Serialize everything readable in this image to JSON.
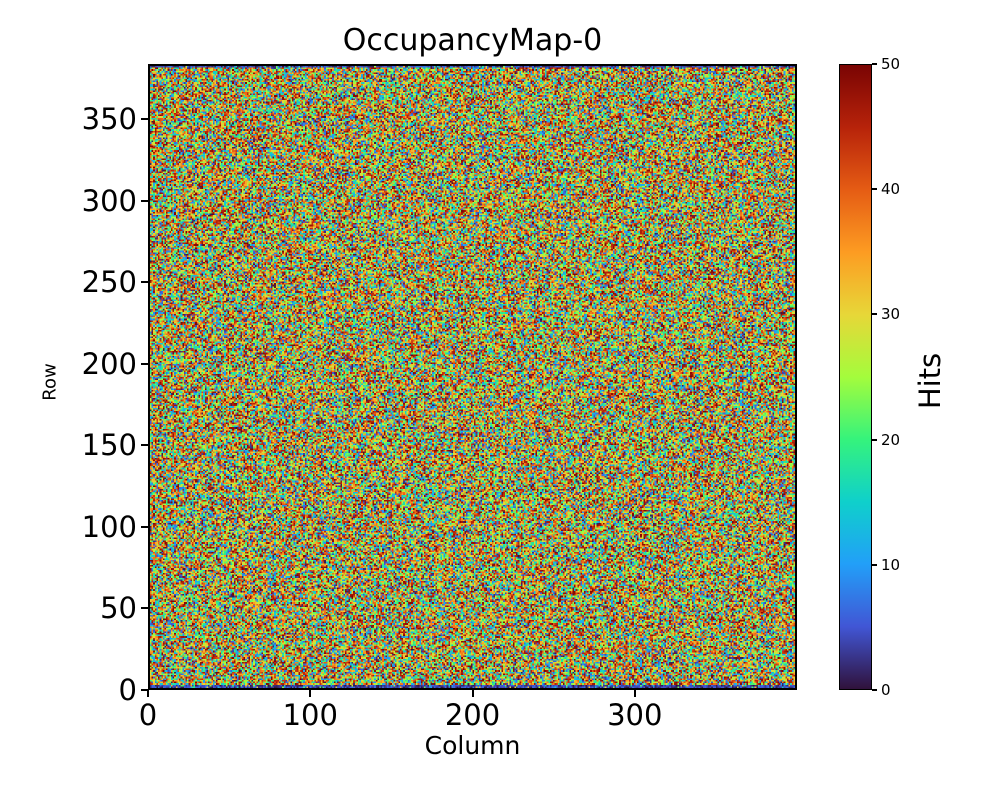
{
  "figure": {
    "background_color": "#ffffff",
    "text_color": "#000000",
    "spine_color": "#000000"
  },
  "chart_data": {
    "type": "heatmap",
    "title": "OccupancyMap-0",
    "xlabel": "Column",
    "ylabel": "Row",
    "colorbar_label": "Hits",
    "x_range": [
      0,
      400
    ],
    "y_range": [
      0,
      384
    ],
    "value_range": [
      0,
      50
    ],
    "x_ticks": [
      0,
      100,
      200,
      300
    ],
    "y_ticks": [
      0,
      50,
      100,
      150,
      200,
      250,
      300,
      350
    ],
    "colorbar_ticks": [
      0,
      10,
      20,
      30,
      40,
      50
    ],
    "grid": false,
    "legend": false,
    "colormap": "turbo",
    "colormap_stops": [
      "#30123b",
      "#4156d5",
      "#229ff8",
      "#0fd0cb",
      "#35f37c",
      "#a4fc3c",
      "#e7d738",
      "#fd9c22",
      "#e55c14",
      "#b7230a",
      "#7a0403"
    ],
    "data_generation": {
      "description": "per-pixel random hit counts, warm-skewed uniform noise clipped to value_range; top and bottom detector rows nearly empty (dark)",
      "seed": 20240042,
      "ncols": 400,
      "nrows": 384,
      "distribution": "v = vmax * u^exponent",
      "exponent": 0.8,
      "vmax": 50,
      "dark_bottom_rows": 2,
      "dark_top_rows": 1,
      "dark_row_max_value": 7,
      "dark_row_bright_fraction": 0.08
    }
  }
}
